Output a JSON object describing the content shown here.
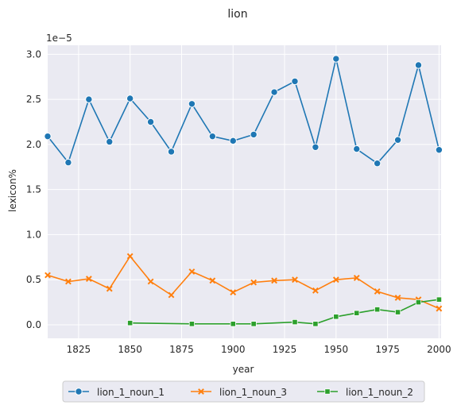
{
  "chart_data": {
    "type": "line",
    "title": "lion",
    "xlabel": "year",
    "ylabel": "lexicon%",
    "offset_label": "1e−5",
    "xlim": [
      1810,
      2001
    ],
    "ylim": [
      -0.15,
      3.1
    ],
    "x_ticks": [
      1825,
      1850,
      1875,
      1900,
      1925,
      1950,
      1975,
      2000
    ],
    "y_ticks": [
      0.0,
      0.5,
      1.0,
      1.5,
      2.0,
      2.5,
      3.0
    ],
    "y_tick_labels": [
      "0.0",
      "0.5",
      "1.0",
      "1.5",
      "2.0",
      "2.5",
      "3.0"
    ],
    "grid": true,
    "legend_position": "bottom-center",
    "series": [
      {
        "name": "lion_1_noun_1",
        "color": "#1f77b4",
        "marker": "circle",
        "x": [
          1810,
          1820,
          1830,
          1840,
          1850,
          1860,
          1870,
          1880,
          1890,
          1900,
          1910,
          1920,
          1930,
          1940,
          1950,
          1960,
          1970,
          1980,
          1990,
          2000
        ],
        "y": [
          2.09,
          1.8,
          2.5,
          2.03,
          2.51,
          2.25,
          1.92,
          2.45,
          2.09,
          2.04,
          2.11,
          2.58,
          2.7,
          1.97,
          2.95,
          1.95,
          1.79,
          2.05,
          2.88,
          1.94
        ]
      },
      {
        "name": "lion_1_noun_3",
        "color": "#ff7f0e",
        "marker": "x",
        "x": [
          1810,
          1820,
          1830,
          1840,
          1850,
          1860,
          1870,
          1880,
          1890,
          1900,
          1910,
          1920,
          1930,
          1940,
          1950,
          1960,
          1970,
          1980,
          1990,
          2000
        ],
        "y": [
          0.55,
          0.48,
          0.51,
          0.4,
          0.76,
          0.48,
          0.33,
          0.59,
          0.49,
          0.36,
          0.47,
          0.49,
          0.5,
          0.38,
          0.5,
          0.52,
          0.37,
          0.3,
          0.28,
          0.18
        ]
      },
      {
        "name": "lion_1_noun_2",
        "color": "#2ca02c",
        "marker": "square",
        "x": [
          1850,
          1880,
          1900,
          1910,
          1930,
          1940,
          1950,
          1960,
          1970,
          1980,
          1990,
          2000
        ],
        "y": [
          0.02,
          0.01,
          0.01,
          0.01,
          0.03,
          0.01,
          0.09,
          0.13,
          0.17,
          0.14,
          0.25,
          0.28
        ]
      }
    ]
  }
}
